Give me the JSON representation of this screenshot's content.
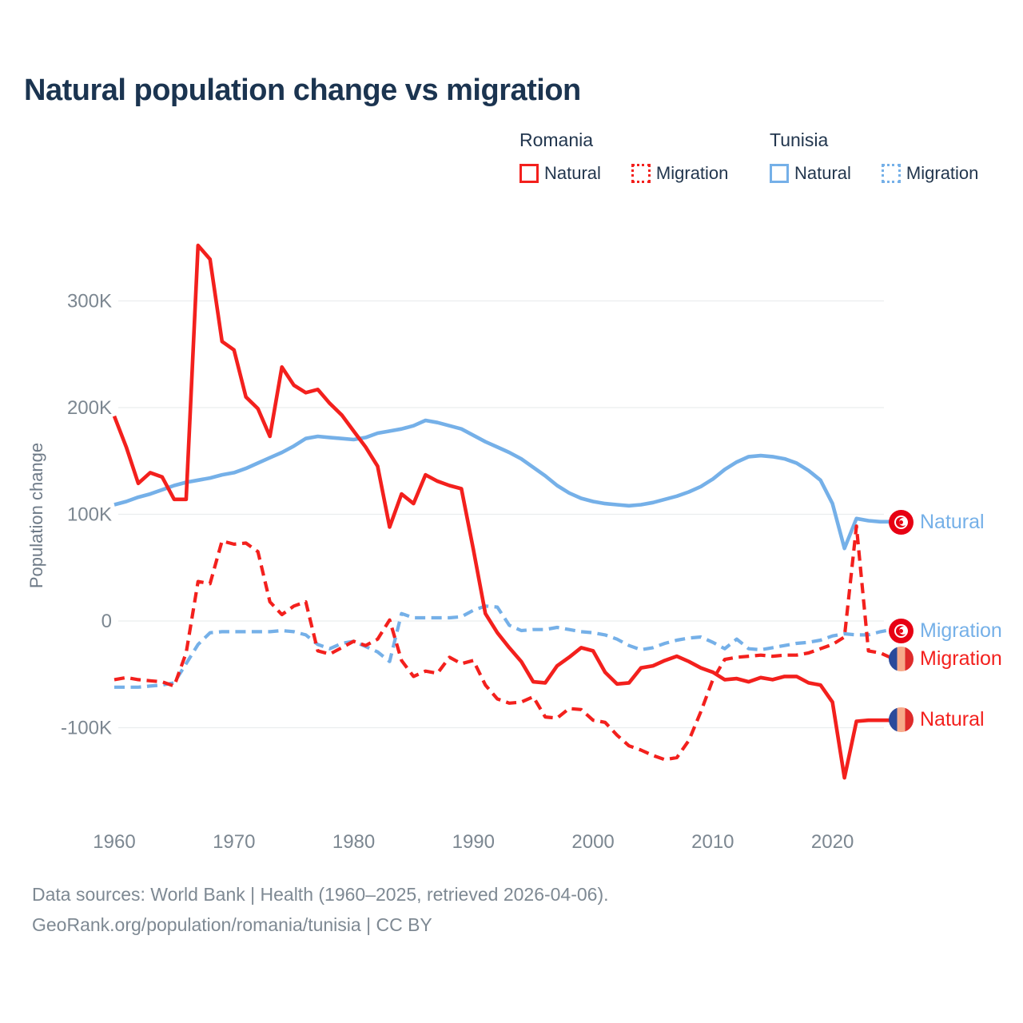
{
  "title": "Natural population change vs migration",
  "legend": {
    "groups": [
      {
        "country": "Romania",
        "items": [
          {
            "label": "Natural",
            "style": "solid"
          },
          {
            "label": "Migration",
            "style": "dotted"
          }
        ]
      },
      {
        "country": "Tunisia",
        "items": [
          {
            "label": "Natural",
            "style": "solid"
          },
          {
            "label": "Migration",
            "style": "dotted"
          }
        ]
      }
    ]
  },
  "y_axis": {
    "label": "Population change",
    "ticks": [
      "300K",
      "200K",
      "100K",
      "0",
      "-100K"
    ]
  },
  "x_axis": {
    "ticks": [
      "1960",
      "1970",
      "1980",
      "1990",
      "2000",
      "2010",
      "2020"
    ]
  },
  "end_labels": [
    {
      "text": "Natural",
      "country": "Tunisia",
      "color": "blue"
    },
    {
      "text": "Migration",
      "country": "Tunisia",
      "color": "blue"
    },
    {
      "text": "Migration",
      "country": "Romania",
      "color": "red"
    },
    {
      "text": "Natural",
      "country": "Romania",
      "color": "red"
    }
  ],
  "footer": {
    "line1": "Data sources: World Bank | Health (1960–2025, retrieved 2026-04-06).",
    "line2": "GeoRank.org/population/romania/tunisia | CC BY"
  },
  "colors": {
    "romania": "#f3201d",
    "tunisia": "#75b0e8",
    "title_navy": "#1b3450",
    "axis_gray": "#7c8791",
    "gridline": "#ebedee",
    "tunisia_flag_red": "#e70013",
    "romania_flag_blue": "#2a4a9b",
    "romania_flag_yellow": "#f7aa8a",
    "romania_flag_red": "#de2b2b"
  },
  "chart_data": {
    "type": "line",
    "title": "Natural population change vs migration",
    "xlabel": "",
    "ylabel": "Population change",
    "values_unit": "thousands of people per year",
    "ylim_K": [
      -160,
      370
    ],
    "yticks_K": [
      300,
      200,
      100,
      0,
      -100
    ],
    "xticks": [
      1960,
      1970,
      1980,
      1990,
      2000,
      2010,
      2020
    ],
    "grid": "horizontal",
    "legend_position": "top-right",
    "years": [
      1960,
      1961,
      1962,
      1963,
      1964,
      1965,
      1966,
      1967,
      1968,
      1969,
      1970,
      1971,
      1972,
      1973,
      1974,
      1975,
      1976,
      1977,
      1978,
      1979,
      1980,
      1981,
      1982,
      1983,
      1984,
      1985,
      1986,
      1987,
      1988,
      1989,
      1990,
      1991,
      1992,
      1993,
      1994,
      1995,
      1996,
      1997,
      1998,
      1999,
      2000,
      2001,
      2002,
      2003,
      2004,
      2005,
      2006,
      2007,
      2008,
      2009,
      2010,
      2011,
      2012,
      2013,
      2014,
      2015,
      2016,
      2017,
      2018,
      2019,
      2020,
      2021,
      2022,
      2023,
      2024,
      2025
    ],
    "series": [
      {
        "id": "tunisia-natural",
        "name": "Tunisia Natural",
        "color": "#75b0e8",
        "dash": "solid",
        "values": [
          109,
          112,
          116,
          119,
          123,
          127,
          130,
          132,
          134,
          137,
          139,
          143,
          148,
          153,
          158,
          164,
          171,
          173,
          172,
          171,
          170,
          172,
          176,
          178,
          180,
          183,
          188,
          186,
          183,
          180,
          174,
          168,
          163,
          158,
          152,
          144,
          136,
          127,
          120,
          115,
          112,
          110,
          109,
          108,
          109,
          111,
          114,
          117,
          121,
          126,
          133,
          142,
          149,
          154,
          155,
          154,
          152,
          148,
          141,
          132,
          110,
          68,
          96,
          94,
          93,
          93
        ]
      },
      {
        "id": "tunisia-migration",
        "name": "Tunisia Migration",
        "color": "#75b0e8",
        "dash": "dashed",
        "values": [
          -62,
          -62,
          -62,
          -61,
          -60,
          -58,
          -40,
          -22,
          -11,
          -10,
          -10,
          -10,
          -10,
          -10,
          -9,
          -10,
          -13,
          -22,
          -26,
          -21,
          -19,
          -24,
          -29,
          -38,
          7,
          3,
          3,
          3,
          3,
          4,
          10,
          14,
          13,
          -4,
          -9,
          -8,
          -8,
          -6,
          -8,
          -10,
          -11,
          -13,
          -17,
          -23,
          -27,
          -25,
          -21,
          -18,
          -16,
          -15,
          -20,
          -26,
          -17,
          -26,
          -27,
          -25,
          -23,
          -21,
          -20,
          -18,
          -14,
          -12,
          -13,
          -13,
          -10,
          -8
        ]
      },
      {
        "id": "romania-migration",
        "name": "Romania Migration",
        "color": "#f3201d",
        "dash": "dashed",
        "values": [
          -55,
          -53,
          -55,
          -56,
          -57,
          -61,
          -30,
          37,
          35,
          75,
          72,
          73,
          65,
          18,
          6,
          14,
          18,
          -28,
          -31,
          -25,
          -19,
          -23,
          -17,
          1,
          -37,
          -52,
          -47,
          -49,
          -34,
          -40,
          -37,
          -60,
          -73,
          -77,
          -76,
          -71,
          -90,
          -91,
          -82,
          -83,
          -93,
          -95,
          -107,
          -117,
          -121,
          -126,
          -130,
          -128,
          -112,
          -85,
          -55,
          -36,
          -34,
          -33,
          -32,
          -33,
          -32,
          -32,
          -30,
          -26,
          -22,
          -15,
          89,
          -28,
          -30,
          -35
        ]
      },
      {
        "id": "romania-natural",
        "name": "Romania Natural",
        "color": "#f3201d",
        "dash": "solid",
        "values": [
          192,
          163,
          129,
          139,
          135,
          114,
          114,
          352,
          339,
          262,
          254,
          210,
          199,
          173,
          238,
          221,
          214,
          217,
          204,
          193,
          178,
          163,
          145,
          88,
          119,
          110,
          137,
          131,
          127,
          124,
          67,
          7,
          -11,
          -25,
          -38,
          -57,
          -58,
          -42,
          -34,
          -25,
          -28,
          -48,
          -59,
          -58,
          -44,
          -42,
          -37,
          -33,
          -38,
          -44,
          -48,
          -55,
          -54,
          -57,
          -53,
          -55,
          -52,
          -52,
          -58,
          -60,
          -76,
          -147,
          -94,
          -93,
          -93,
          -93
        ]
      }
    ]
  }
}
